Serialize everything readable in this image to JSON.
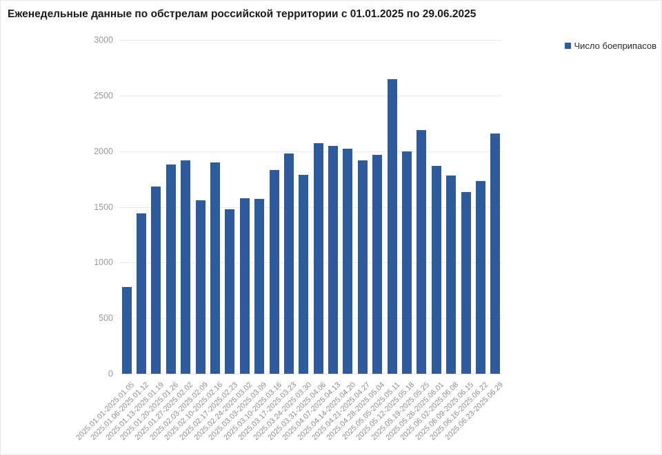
{
  "chart_data": {
    "type": "bar",
    "title": "Еженедельные данные по обстрелам российской территории с 01.01.2025 по 29.06.2025",
    "legend": "Число боеприпасов",
    "legend_position": "top-right",
    "bar_color": "#2e5b9e",
    "grid": true,
    "xlabel": "",
    "ylabel": "",
    "ylim": [
      0,
      3000
    ],
    "yticks": [
      0,
      500,
      1000,
      1500,
      2000,
      2500,
      3000
    ],
    "categories": [
      "2025.01.01-2025.01.05",
      "2025.01.06-2025.01.12",
      "2025.01.13-2025.01.19",
      "2025.01.20-2025.01.26",
      "2025.01.27-2025.02.02",
      "2025.02.03-2025.02.09",
      "2025.02.10-2025.02.16",
      "2025.02.17-2025.02.23",
      "2025.02.24-2025.03.02",
      "2025.03.03-2025.03.09",
      "2025.03.10-2025.03.16",
      "2025.03.17-2025.03.23",
      "2025.03.24-2025.03.30",
      "2025.03.31-2025.04.06",
      "2025.04.07-2025.04.13",
      "2025.04.14-2025.04.20",
      "2025.04.21-2025.04.27",
      "2025.04.28-2025.05.04",
      "2025.05.05-2025.05.11",
      "2025.05.12-2025.05.18",
      "2025.05.19-2025.05.25",
      "2025.05.26-2025.06.01",
      "2025.06.02-2025.06.08",
      "2025.06.09-2025.06.15",
      "2025.06.16-2025.06.22",
      "2025.06.23-2025.06.29"
    ],
    "values": [
      780,
      1440,
      1680,
      1880,
      1920,
      1560,
      1900,
      1480,
      1580,
      1570,
      1830,
      1980,
      1790,
      2070,
      2050,
      2020,
      1920,
      1970,
      2650,
      2000,
      2190,
      1870,
      1780,
      1630,
      1730,
      2160
    ]
  }
}
